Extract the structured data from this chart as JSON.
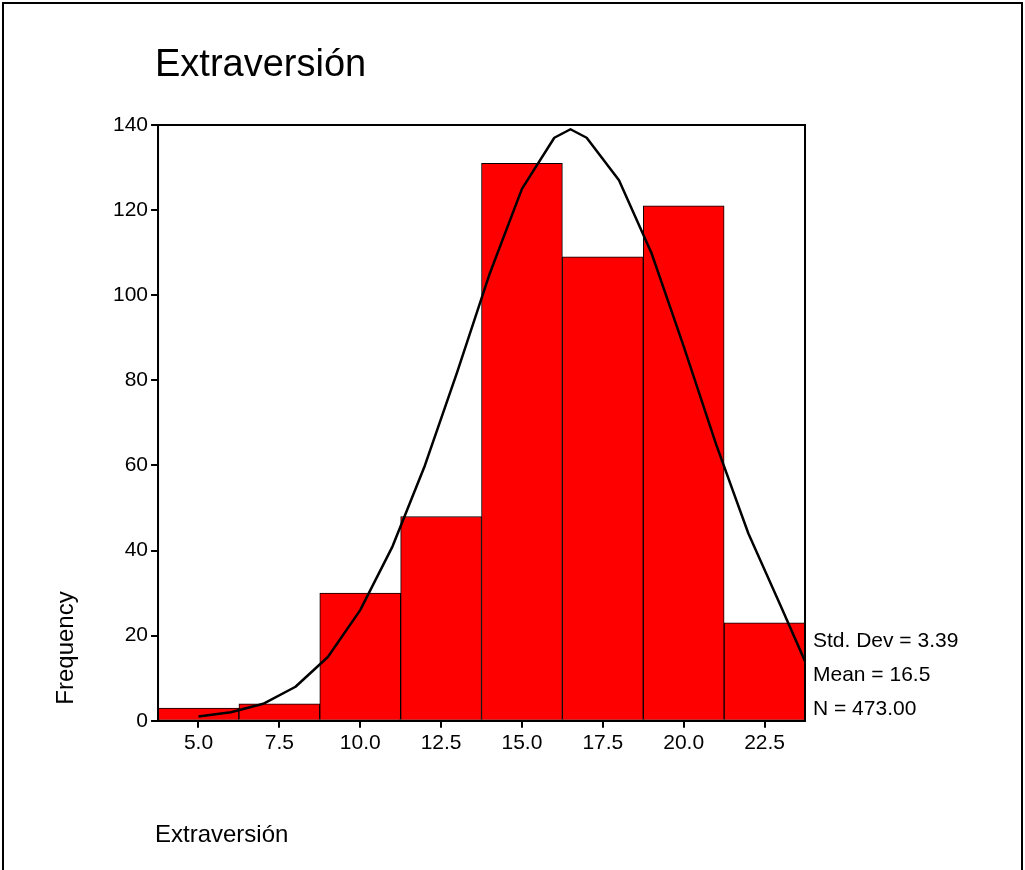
{
  "chart_data": {
    "type": "histogram",
    "title": "Extraversión",
    "xlabel": "Extraversión",
    "ylabel": "Frequency",
    "bins": [
      3.75,
      6.25,
      8.75,
      11.25,
      13.75,
      16.25,
      18.75,
      21.25,
      23.75
    ],
    "values": [
      3,
      4,
      30,
      48,
      131,
      109,
      121,
      23
    ],
    "color": "#ff0000",
    "series": [
      {
        "type": "line",
        "color": "#000000",
        "x": [
          5,
          6,
          7,
          8,
          9,
          10,
          11,
          12,
          13,
          14,
          15,
          16,
          16.5,
          17,
          18,
          19,
          20,
          21,
          22,
          23,
          23.75
        ],
        "values": [
          1,
          2,
          4,
          8,
          15,
          26,
          41,
          60,
          82,
          105,
          125,
          137,
          139,
          137,
          127,
          110,
          88,
          65,
          44,
          27,
          14
        ]
      }
    ],
    "xlim": [
      3.75,
      23.75
    ],
    "xticks": [
      {
        "value": 5,
        "label": "5.0"
      },
      {
        "value": 7.5,
        "label": "7.5"
      },
      {
        "value": 10,
        "label": "10.0"
      },
      {
        "value": 12.5,
        "label": "12.5"
      },
      {
        "value": 15,
        "label": "15.0"
      },
      {
        "value": 17.5,
        "label": "17.5"
      },
      {
        "value": 20,
        "label": "20.0"
      },
      {
        "value": 22.5,
        "label": "22.5"
      }
    ],
    "ylim": [
      0,
      140
    ],
    "yticks": [
      0,
      20,
      40,
      60,
      80,
      100,
      120,
      140
    ],
    "grid": false,
    "legend": false,
    "marker": "none",
    "line_style": "solid",
    "annotations": [
      "Std. Dev = 3.39",
      "Mean = 16.5",
      "N = 473.00"
    ]
  }
}
